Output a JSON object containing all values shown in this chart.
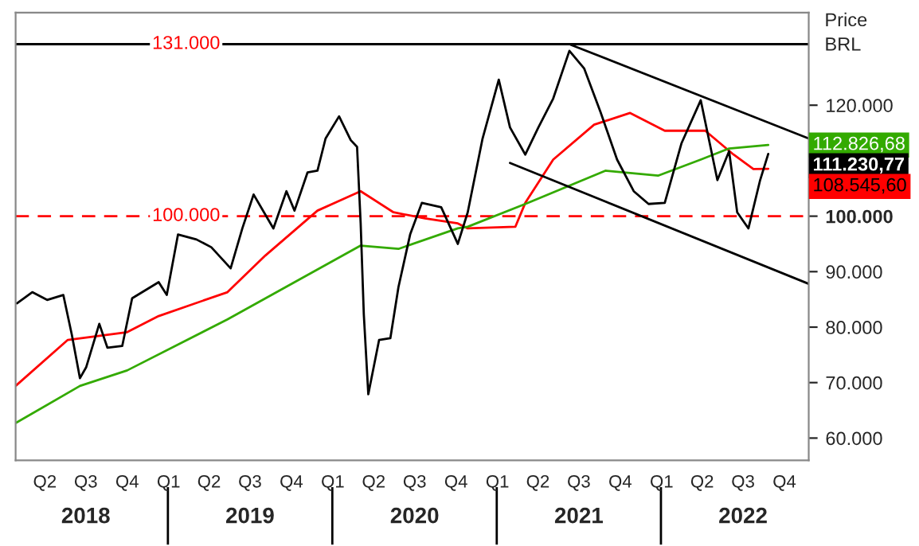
{
  "chart_data": {
    "type": "line",
    "ylabel": "Price\nBRL",
    "legend": false,
    "grid": false,
    "marker": "none",
    "line_style": "solid",
    "xlim": [
      "2018-01-26",
      "2022-11-24"
    ],
    "xticks": [
      {
        "value": "2018-04-01",
        "label": "Q2"
      },
      {
        "value": "2018-07-01",
        "label": "Q3"
      },
      {
        "value": "2018-10-01",
        "label": "Q4"
      },
      {
        "value": "2019-01-01",
        "label": "Q1"
      },
      {
        "value": "2019-04-01",
        "label": "Q2"
      },
      {
        "value": "2019-07-01",
        "label": "Q3"
      },
      {
        "value": "2019-10-01",
        "label": "Q4"
      },
      {
        "value": "2020-01-01",
        "label": "Q1"
      },
      {
        "value": "2020-04-01",
        "label": "Q2"
      },
      {
        "value": "2020-07-01",
        "label": "Q3"
      },
      {
        "value": "2020-10-01",
        "label": "Q4"
      },
      {
        "value": "2021-01-01",
        "label": "Q1"
      },
      {
        "value": "2021-04-01",
        "label": "Q2"
      },
      {
        "value": "2021-07-01",
        "label": "Q3"
      },
      {
        "value": "2021-10-01",
        "label": "Q4"
      },
      {
        "value": "2022-01-01",
        "label": "Q1"
      },
      {
        "value": "2022-04-01",
        "label": "Q2"
      },
      {
        "value": "2022-07-01",
        "label": "Q3"
      },
      {
        "value": "2022-10-01",
        "label": "Q4"
      }
    ],
    "x2lim": [
      "2018-01-26",
      "2022-11-24"
    ],
    "x2ticks": [
      {
        "value": "2018-07-01",
        "label": "2018"
      },
      {
        "value": "2019-07-01",
        "label": "2019"
      },
      {
        "value": "2020-07-01",
        "label": "2020"
      },
      {
        "value": "2021-07-01",
        "label": "2021"
      },
      {
        "value": "2022-07-01",
        "label": "2022"
      }
    ],
    "ylim": [
      56000,
      136700
    ],
    "yticks": [
      {
        "value": 60000,
        "label": "60.000"
      },
      {
        "value": 70000,
        "label": "70.000"
      },
      {
        "value": 80000,
        "label": "80.000"
      },
      {
        "value": 90000,
        "label": "90.000"
      },
      {
        "value": 100000,
        "label": "100.000"
      },
      {
        "value": 120000,
        "label": "120.000"
      }
    ],
    "annotations": [
      {
        "text": "112.826,68",
        "x": "2022-08-26",
        "y": 112826.68
      },
      {
        "text": "111.230,77",
        "x": "2022-08-26",
        "y": 111230.77
      },
      {
        "text": "108.545,60",
        "x": "2022-08-26",
        "y": 108545.6
      }
    ],
    "ref_lines": [
      {
        "axis": "y",
        "value": 131000,
        "label": "131.000",
        "color": "#000000",
        "line_style": "solid"
      },
      {
        "axis": "y",
        "value": 100000,
        "label": "100.000",
        "color": "#ff0000",
        "line_style": "dashed"
      }
    ],
    "series": [
      {
        "color": "#ff0000",
        "x": [
          "2018-01-26",
          "2018-05-22",
          "2018-10-01",
          "2018-12-10",
          "2019-05-12",
          "2019-08-04",
          "2019-11-28",
          "2020-03-03",
          "2020-05-15",
          "2020-07-24",
          "2020-10-05",
          "2020-10-27",
          "2021-02-10",
          "2021-03-04",
          "2021-05-05",
          "2021-08-04",
          "2021-10-23",
          "2022-01-08",
          "2022-04-08",
          "2022-06-10",
          "2022-07-24",
          "2022-08-26"
        ],
        "values": [
          69400,
          77700,
          79100,
          82000,
          86300,
          92900,
          101000,
          104500,
          100700,
          99600,
          98700,
          97800,
          98100,
          102400,
          110200,
          116500,
          118600,
          115400,
          115400,
          111100,
          108500,
          108545.6
        ]
      },
      {
        "color": "#33aa00",
        "x": [
          "2018-01-26",
          "2018-06-18",
          "2018-10-01",
          "2019-05-12",
          "2020-03-03",
          "2020-05-26",
          "2020-10-05",
          "2020-10-27",
          "2021-03-04",
          "2021-08-29",
          "2021-12-24",
          "2022-03-29",
          "2022-05-31",
          "2022-08-26"
        ],
        "values": [
          62700,
          69400,
          72200,
          81400,
          94700,
          94100,
          97800,
          98100,
          102200,
          108200,
          107300,
          110200,
          112200,
          112826.68
        ]
      },
      {
        "color": "#000000",
        "x": [
          "2018-01-29",
          "2018-03-04",
          "2018-04-06",
          "2018-05-12",
          "2018-05-31",
          "2018-06-18",
          "2018-07-02",
          "2018-07-31",
          "2018-08-18",
          "2018-09-20",
          "2018-10-12",
          "2018-12-10",
          "2018-12-28",
          "2019-01-22",
          "2019-03-04",
          "2019-04-06",
          "2019-05-19",
          "2019-06-14",
          "2019-07-09",
          "2019-08-22",
          "2019-09-20",
          "2019-10-08",
          "2019-11-06",
          "2019-11-28",
          "2019-12-16",
          "2020-01-15",
          "2020-02-10",
          "2020-02-24",
          "2020-03-03",
          "2020-03-10",
          "2020-03-20",
          "2020-04-13",
          "2020-05-08",
          "2020-05-26",
          "2020-06-21",
          "2020-07-17",
          "2020-08-29",
          "2020-10-05",
          "2020-10-27",
          "2020-11-29",
          "2021-01-04",
          "2021-01-29",
          "2021-03-04",
          "2021-04-02",
          "2021-05-05",
          "2021-06-10",
          "2021-07-13",
          "2021-08-18",
          "2021-09-24",
          "2021-10-31",
          "2021-12-03",
          "2022-01-08",
          "2022-02-14",
          "2022-03-29",
          "2022-05-05",
          "2022-05-31",
          "2022-06-18",
          "2022-07-13",
          "2022-08-08",
          "2022-08-26"
        ],
        "values": [
          84300,
          86300,
          84900,
          85800,
          78600,
          70800,
          72800,
          80600,
          76300,
          76600,
          85200,
          88100,
          85800,
          96700,
          95800,
          94400,
          90600,
          97800,
          103900,
          97800,
          104500,
          101000,
          107900,
          108200,
          114000,
          118000,
          113700,
          112500,
          98700,
          82300,
          67900,
          77700,
          78000,
          87200,
          96700,
          102400,
          101600,
          95000,
          100700,
          114000,
          124600,
          116000,
          111100,
          116000,
          121200,
          129800,
          126600,
          118800,
          110200,
          104500,
          102200,
          102400,
          113100,
          120900,
          106500,
          111700,
          100700,
          97800,
          106500,
          111230.77
        ]
      },
      {
        "color": "#000000",
        "x": [
          "2021-06-13",
          "2022-11-24"
        ],
        "values": [
          130900,
          114000
        ]
      },
      {
        "color": "#000000",
        "x": [
          "2021-01-29",
          "2022-11-24"
        ],
        "values": [
          109600,
          87800
        ]
      }
    ]
  }
}
